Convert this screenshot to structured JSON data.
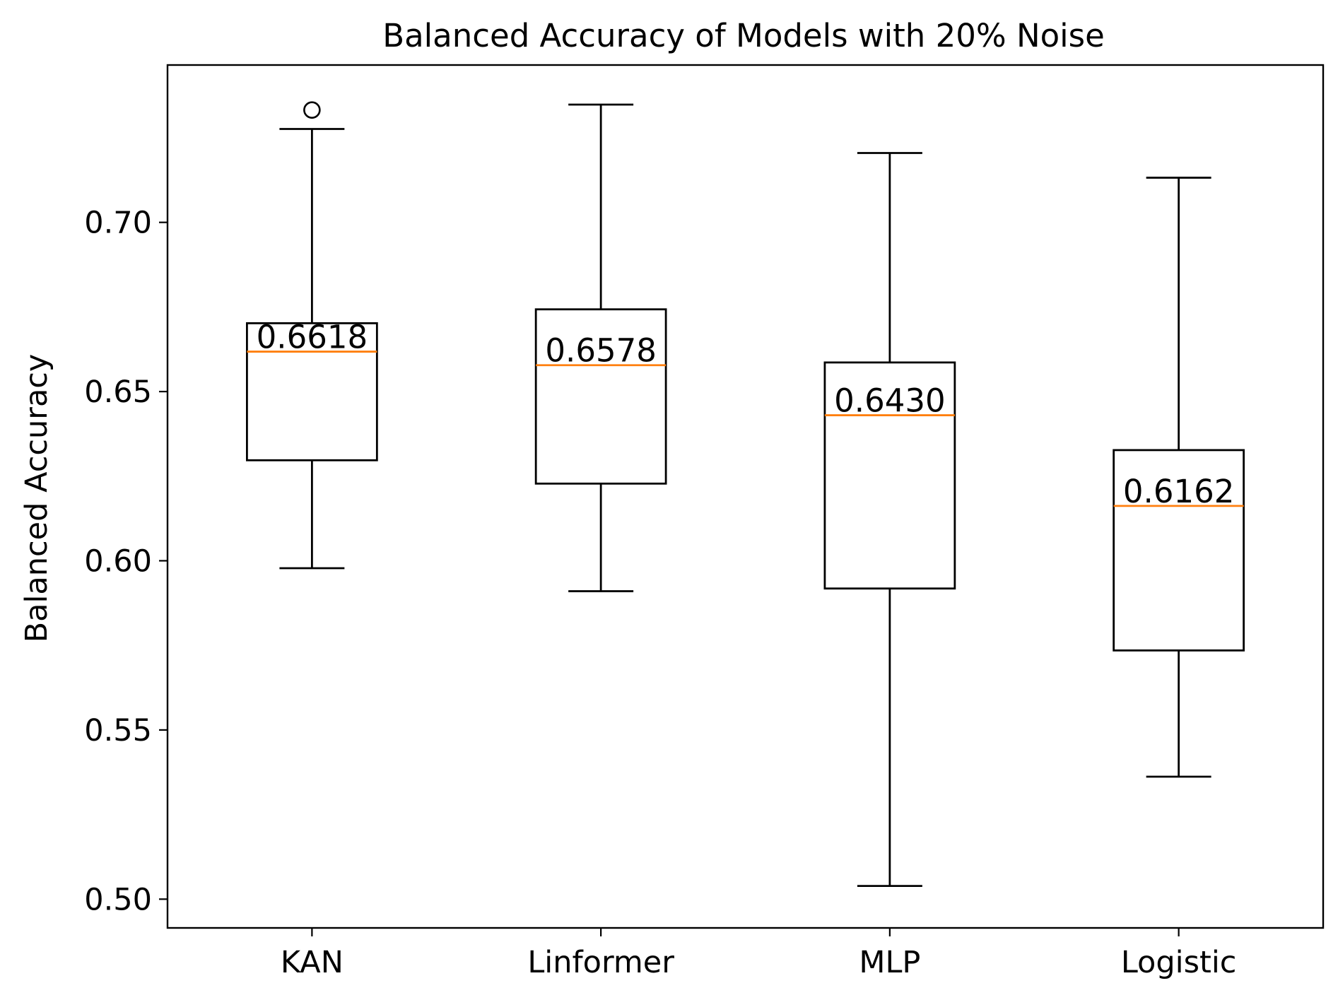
{
  "chart_data": {
    "type": "box",
    "title": "Balanced Accuracy of Models with 20% Noise",
    "xlabel": "",
    "ylabel": "Balanced Accuracy",
    "ylim": [
      0.4915,
      0.7465
    ],
    "yticks": [
      "0.50",
      "0.55",
      "0.60",
      "0.65",
      "0.70"
    ],
    "grid": false,
    "categories": [
      "KAN",
      "Linformer",
      "MLP",
      "Logistic"
    ],
    "boxes": [
      {
        "category": "KAN",
        "whisker_low": 0.5978,
        "q1": 0.6297,
        "median": 0.6618,
        "q3": 0.6702,
        "whisker_high": 0.7276,
        "outliers": [
          0.7332
        ],
        "median_label": "0.6618"
      },
      {
        "category": "Linformer",
        "whisker_low": 0.591,
        "q1": 0.6228,
        "median": 0.6578,
        "q3": 0.6743,
        "whisker_high": 0.7348,
        "outliers": [],
        "median_label": "0.6578"
      },
      {
        "category": "MLP",
        "whisker_low": 0.5039,
        "q1": 0.5918,
        "median": 0.643,
        "q3": 0.6586,
        "whisker_high": 0.7205,
        "outliers": [],
        "median_label": "0.6430"
      },
      {
        "category": "Logistic",
        "whisker_low": 0.5362,
        "q1": 0.5735,
        "median": 0.6162,
        "q3": 0.6327,
        "whisker_high": 0.7132,
        "outliers": [],
        "median_label": "0.6162"
      }
    ],
    "colors": {
      "box": "#000000",
      "median_line": "#ff7f0e",
      "median_label": "#0000ee"
    }
  }
}
